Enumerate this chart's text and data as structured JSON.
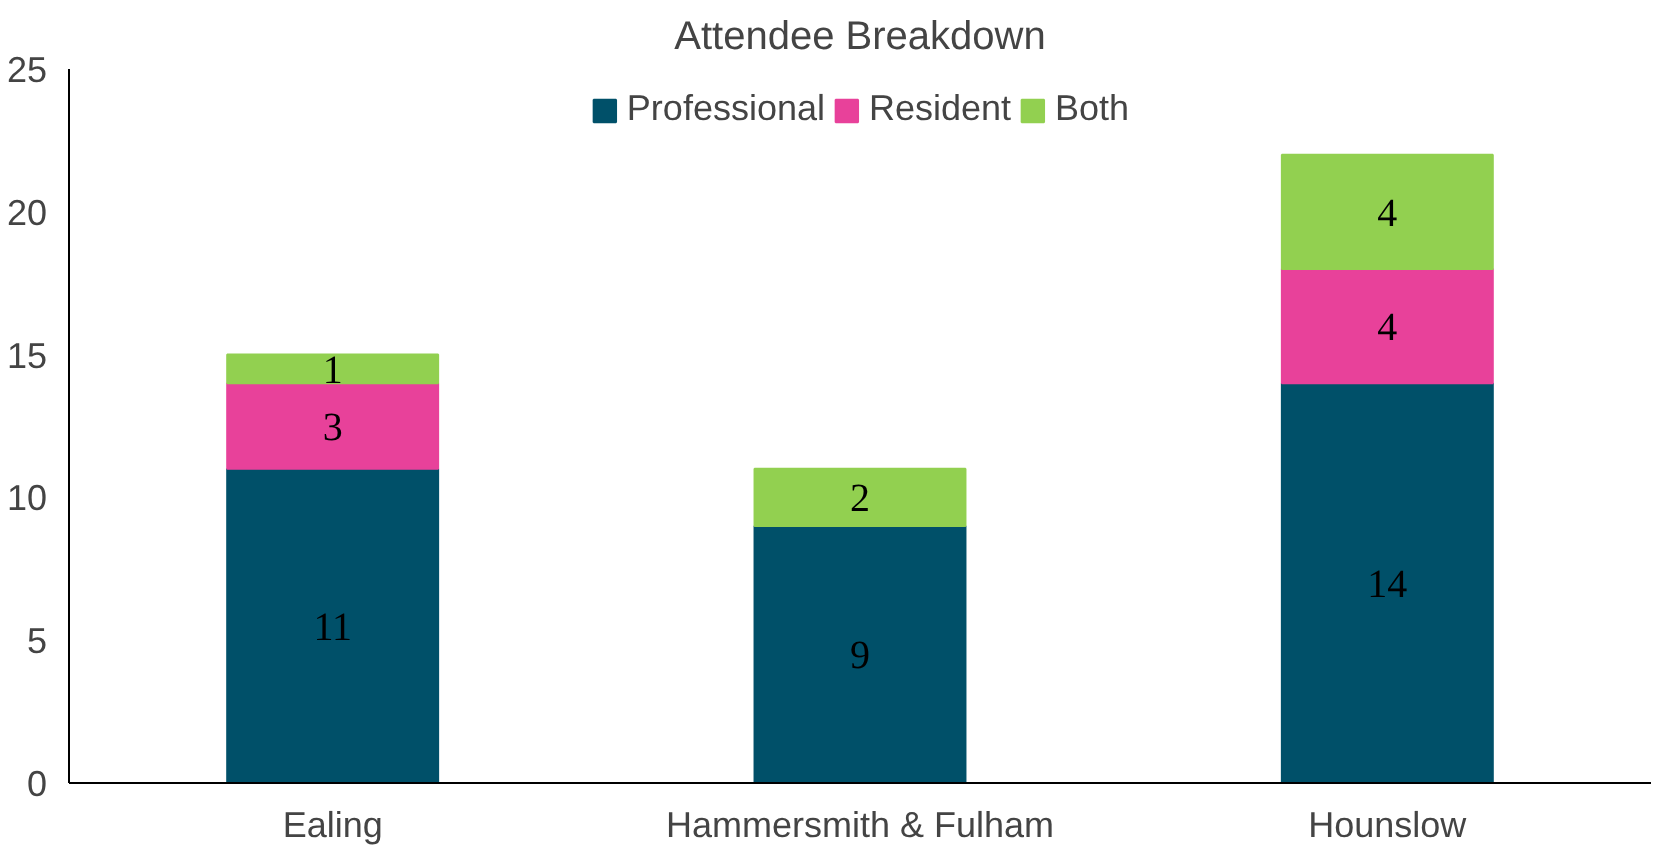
{
  "chart_data": {
    "type": "bar",
    "title": "Attendee Breakdown",
    "stacked": true,
    "categories": [
      "Ealing",
      "Hammersmith & Fulham",
      "Hounslow"
    ],
    "series": [
      {
        "name": "Professional",
        "color": "#005069",
        "values": [
          11,
          9,
          14
        ],
        "value_labels": [
          "11",
          "9",
          "14"
        ]
      },
      {
        "name": "Resident",
        "color": "#e8419a",
        "values": [
          3,
          0,
          4
        ],
        "value_labels": [
          "3",
          null,
          "4"
        ]
      },
      {
        "name": "Both",
        "color": "#92d050",
        "values": [
          1,
          2,
          4
        ],
        "value_labels": [
          "1",
          "2",
          "4"
        ]
      }
    ],
    "ylim": [
      0,
      25
    ],
    "yticks": [
      0,
      5,
      10,
      15,
      20,
      25
    ],
    "grid": false,
    "legend": "top"
  }
}
